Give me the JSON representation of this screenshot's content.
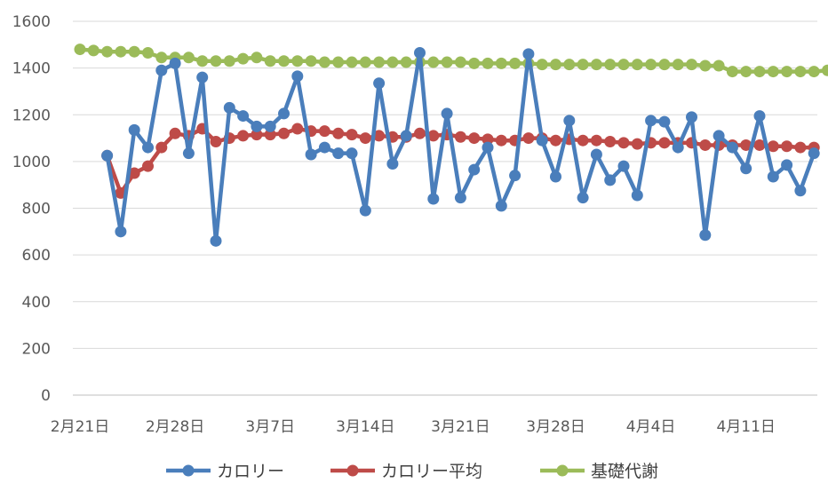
{
  "chart_data": {
    "type": "line",
    "title": "",
    "xlabel": "",
    "ylabel": "",
    "ylim": [
      0,
      1600
    ],
    "yticks": [
      0,
      200,
      400,
      600,
      800,
      1000,
      1200,
      1400,
      1600
    ],
    "grid": "horizontal",
    "legend_position": "bottom",
    "x_start_date": "2月21日",
    "x_tick_labels": [
      "2月21日",
      "2月28日",
      "3月7日",
      "3月14日",
      "3月21日",
      "3月28日",
      "4月4日",
      "4月11日"
    ],
    "x_tick_indices": [
      0,
      7,
      14,
      21,
      28,
      35,
      42,
      49
    ],
    "series": [
      {
        "name": "カロリー",
        "color": "#4a7ebb",
        "start_index": 2,
        "values": [
          1025,
          700,
          1135,
          1060,
          1390,
          1420,
          1035,
          1360,
          660,
          1230,
          1195,
          1150,
          1150,
          1205,
          1365,
          1030,
          1060,
          1035,
          1035,
          790,
          1335,
          990,
          1110,
          1465,
          840,
          1205,
          845,
          965,
          1060,
          810,
          940,
          1460,
          1090,
          935,
          1175,
          845,
          1030,
          920,
          980,
          855,
          1175,
          1170,
          1060,
          1190,
          685,
          1110,
          1060,
          970,
          1195,
          935,
          985,
          875,
          1035
        ]
      },
      {
        "name": "カロリー平均",
        "color": "#be4b48",
        "start_index": 2,
        "values": [
          1025,
          865,
          950,
          980,
          1060,
          1120,
          1110,
          1140,
          1085,
          1100,
          1110,
          1115,
          1115,
          1120,
          1140,
          1130,
          1130,
          1120,
          1115,
          1100,
          1110,
          1105,
          1105,
          1120,
          1110,
          1115,
          1105,
          1100,
          1095,
          1090,
          1090,
          1100,
          1100,
          1090,
          1095,
          1090,
          1090,
          1085,
          1080,
          1075,
          1080,
          1080,
          1080,
          1080,
          1070,
          1070,
          1070,
          1070,
          1070,
          1065,
          1065,
          1060,
          1060
        ]
      },
      {
        "name": "基礎代謝",
        "color": "#9bbb59",
        "start_index": 0,
        "values": [
          1480,
          1475,
          1470,
          1470,
          1470,
          1465,
          1445,
          1445,
          1445,
          1430,
          1430,
          1430,
          1440,
          1445,
          1430,
          1430,
          1430,
          1430,
          1425,
          1425,
          1425,
          1425,
          1425,
          1425,
          1425,
          1425,
          1425,
          1425,
          1425,
          1420,
          1420,
          1420,
          1420,
          1420,
          1415,
          1415,
          1415,
          1415,
          1415,
          1415,
          1415,
          1415,
          1415,
          1415,
          1415,
          1415,
          1410,
          1410,
          1385,
          1385,
          1385,
          1385,
          1385,
          1385,
          1385,
          1390,
          1395
        ]
      }
    ]
  }
}
